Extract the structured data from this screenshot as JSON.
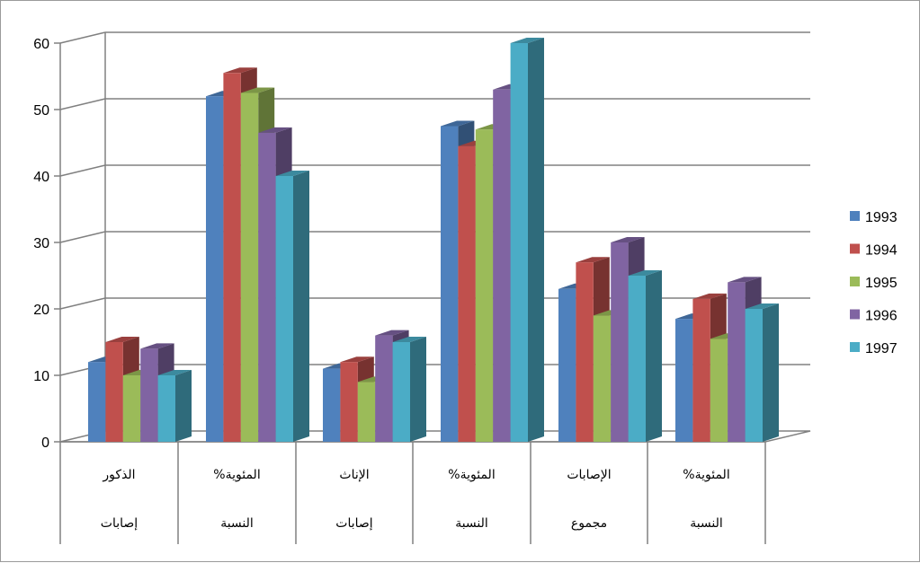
{
  "chart_data": {
    "type": "bar",
    "title": "",
    "xlabel": "",
    "ylabel": "",
    "ylim": [
      0,
      60
    ],
    "yticks": [
      0,
      10,
      20,
      30,
      40,
      50,
      60
    ],
    "grid": true,
    "legend_position": "right",
    "categories": [
      {
        "line1": "الذكور",
        "line2": "إصابات"
      },
      {
        "line1": "%المئوية",
        "line2": "النسبة"
      },
      {
        "line1": "الإناث",
        "line2": "إصابات"
      },
      {
        "line1": "%المئوية",
        "line2": "النسبة"
      },
      {
        "line1": "الإصابات",
        "line2": "مجموع"
      },
      {
        "line1": "%المئوية",
        "line2": "النسبة"
      }
    ],
    "series": [
      {
        "name": "1993",
        "color": "#4F81BD",
        "values": [
          12,
          52,
          11,
          47.5,
          23,
          18.5
        ]
      },
      {
        "name": "1994",
        "color": "#C0504D",
        "values": [
          15,
          55.5,
          12,
          44.5,
          27,
          21.5
        ]
      },
      {
        "name": "1995",
        "color": "#9BBB59",
        "values": [
          10,
          52.5,
          9,
          47,
          19,
          15.5
        ]
      },
      {
        "name": "1996",
        "color": "#8064A2",
        "values": [
          14,
          46.5,
          16,
          53,
          30,
          24
        ]
      },
      {
        "name": "1997",
        "color": "#4BACC6",
        "values": [
          10,
          40,
          15,
          60,
          25,
          20
        ]
      }
    ]
  }
}
